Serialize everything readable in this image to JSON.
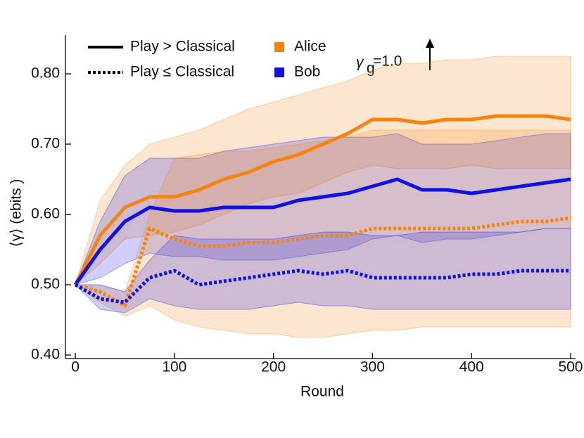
{
  "chart_data": {
    "type": "line",
    "x": [
      0,
      25,
      50,
      75,
      100,
      125,
      150,
      175,
      200,
      225,
      250,
      275,
      300,
      325,
      350,
      375,
      400,
      425,
      450,
      475,
      500
    ],
    "xlim": [
      -10,
      505
    ],
    "ylim": [
      0.395,
      0.855
    ],
    "xticks": [
      0,
      100,
      200,
      300,
      400,
      500
    ],
    "yticks": [
      {
        "value": 0.4,
        "label": "0.40"
      },
      {
        "value": 0.5,
        "label": "0.50"
      },
      {
        "value": 0.6,
        "label": "0.60"
      },
      {
        "value": 0.7,
        "label": "0.70"
      },
      {
        "value": 0.8,
        "label": "0.80"
      }
    ],
    "xlabel": "Round",
    "ylabel": "⟨γ⟩ (ebits )",
    "annotation": {
      "symbol": "γ",
      "subscript": "g",
      "text": "=1.0"
    },
    "legend": {
      "styles": [
        {
          "label": "Play > Classical",
          "dash": "solid"
        },
        {
          "label": "Play ≤ Classical",
          "dash": "dotted"
        }
      ],
      "colors": [
        {
          "label": "Alice",
          "color": "#f7830f"
        },
        {
          "label": "Bob",
          "color": "#0f0fe6"
        }
      ]
    },
    "series": [
      {
        "color": "#f7830f",
        "dash": "solid",
        "values": [
          0.5,
          0.57,
          0.61,
          0.625,
          0.625,
          0.635,
          0.65,
          0.66,
          0.675,
          0.685,
          0.7,
          0.715,
          0.735,
          0.735,
          0.73,
          0.735,
          0.735,
          0.74,
          0.74,
          0.74,
          0.735
        ],
        "upper": [
          0.5,
          0.62,
          0.67,
          0.7,
          0.71,
          0.72,
          0.735,
          0.75,
          0.76,
          0.77,
          0.78,
          0.79,
          0.805,
          0.815,
          0.815,
          0.82,
          0.82,
          0.825,
          0.825,
          0.825,
          0.825
        ],
        "lower": [
          0.5,
          0.53,
          0.565,
          0.57,
          0.575,
          0.585,
          0.6,
          0.615,
          0.625,
          0.63,
          0.645,
          0.66,
          0.67,
          0.665,
          0.665,
          0.665,
          0.67,
          0.665,
          0.665,
          0.665,
          0.665
        ]
      },
      {
        "color": "#0f0fe6",
        "dash": "solid",
        "values": [
          0.5,
          0.55,
          0.59,
          0.61,
          0.605,
          0.605,
          0.61,
          0.61,
          0.61,
          0.62,
          0.625,
          0.63,
          0.64,
          0.65,
          0.635,
          0.635,
          0.63,
          0.635,
          0.64,
          0.645,
          0.65
        ],
        "upper": [
          0.5,
          0.59,
          0.655,
          0.68,
          0.68,
          0.68,
          0.69,
          0.695,
          0.7,
          0.705,
          0.71,
          0.71,
          0.71,
          0.715,
          0.7,
          0.7,
          0.7,
          0.705,
          0.71,
          0.715,
          0.715
        ],
        "lower": [
          0.5,
          0.51,
          0.53,
          0.545,
          0.54,
          0.54,
          0.535,
          0.535,
          0.535,
          0.54,
          0.545,
          0.55,
          0.565,
          0.57,
          0.56,
          0.565,
          0.565,
          0.57,
          0.575,
          0.58,
          0.58
        ]
      },
      {
        "color": "#f7830f",
        "dash": "dotted",
        "values": [
          0.5,
          0.49,
          0.47,
          0.58,
          0.565,
          0.555,
          0.555,
          0.56,
          0.56,
          0.565,
          0.57,
          0.57,
          0.58,
          0.58,
          0.58,
          0.58,
          0.58,
          0.585,
          0.59,
          0.59,
          0.595
        ],
        "upper": [
          0.5,
          0.5,
          0.49,
          0.6,
          0.68,
          0.685,
          0.69,
          0.69,
          0.695,
          0.7,
          0.705,
          0.71,
          0.72,
          0.72,
          0.72,
          0.72,
          0.72,
          0.72,
          0.72,
          0.72,
          0.72
        ],
        "lower": [
          0.5,
          0.475,
          0.455,
          0.47,
          0.45,
          0.44,
          0.435,
          0.43,
          0.43,
          0.425,
          0.425,
          0.43,
          0.435,
          0.435,
          0.44,
          0.44,
          0.44,
          0.44,
          0.44,
          0.44,
          0.44
        ]
      },
      {
        "color": "#0f0fe6",
        "dash": "dotted",
        "values": [
          0.5,
          0.48,
          0.475,
          0.51,
          0.52,
          0.5,
          0.505,
          0.51,
          0.515,
          0.52,
          0.515,
          0.52,
          0.51,
          0.51,
          0.51,
          0.51,
          0.515,
          0.515,
          0.52,
          0.52,
          0.52
        ],
        "upper": [
          0.5,
          0.5,
          0.49,
          0.535,
          0.57,
          0.565,
          0.565,
          0.565,
          0.565,
          0.57,
          0.575,
          0.575,
          0.57,
          0.57,
          0.575,
          0.575,
          0.575,
          0.575,
          0.575,
          0.58,
          0.58
        ],
        "lower": [
          0.5,
          0.465,
          0.46,
          0.48,
          0.47,
          0.465,
          0.465,
          0.465,
          0.47,
          0.475,
          0.47,
          0.47,
          0.465,
          0.465,
          0.465,
          0.465,
          0.465,
          0.465,
          0.465,
          0.465,
          0.465
        ]
      }
    ]
  }
}
